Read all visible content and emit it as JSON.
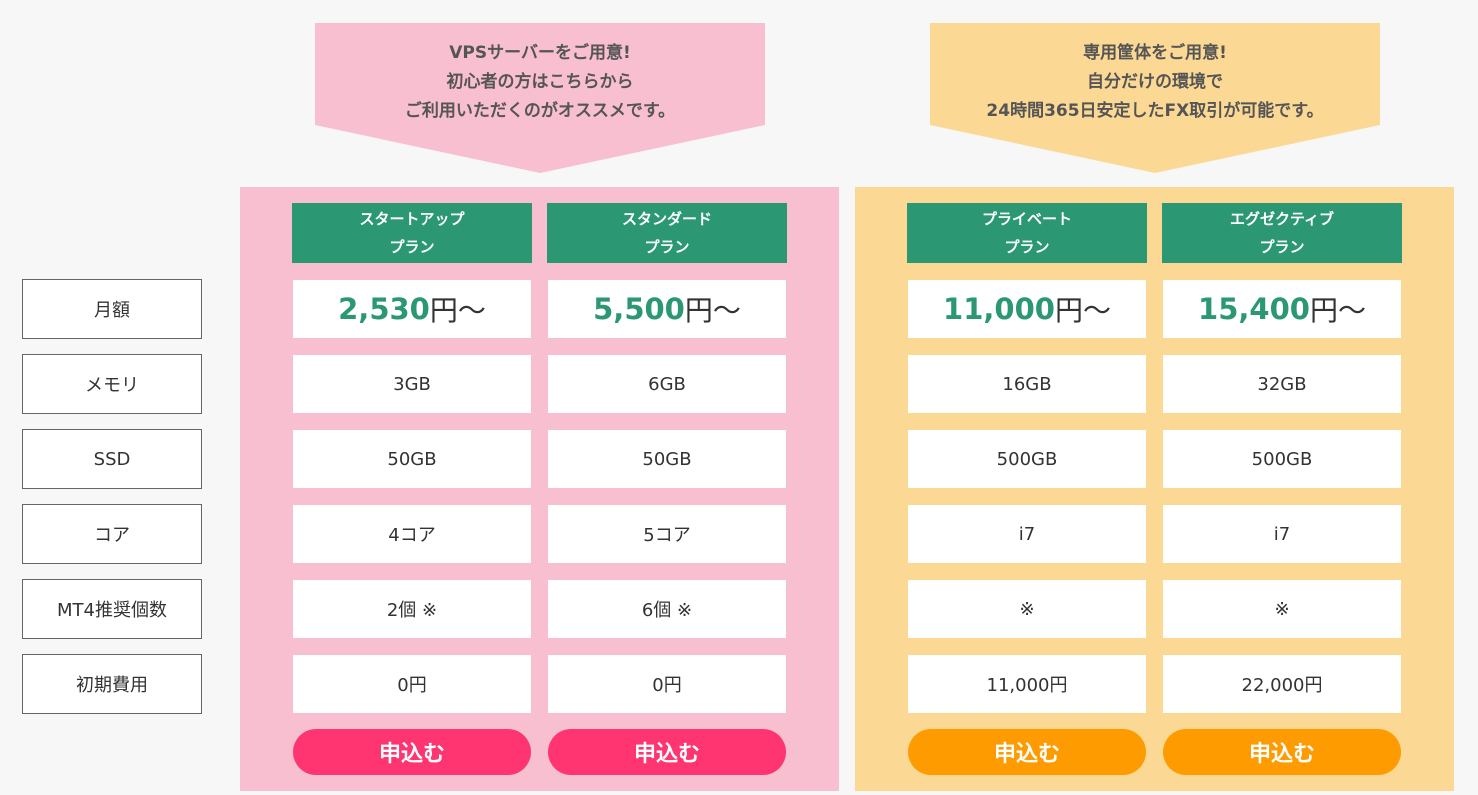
{
  "callouts": {
    "vps": {
      "line1": "VPSサーバーをご用意!",
      "line2": "初心者の方はこちらから",
      "line3": "ご利用いただくのがオススメです。"
    },
    "dedicated": {
      "line1": "専用筐体をご用意!",
      "line2": "自分だけの環境で",
      "line3": "24時間365日安定したFX取引が可能です。"
    }
  },
  "row_labels": {
    "monthly": "月額",
    "memory": "メモリ",
    "ssd": "SSD",
    "core": "コア",
    "mt4": "MT4推奨個数",
    "initial": "初期費用"
  },
  "plans": [
    {
      "name_line1": "スタートアップ",
      "name_line2": "プラン",
      "price_num": "2,530",
      "price_suffix": "円〜",
      "memory": "3GB",
      "ssd": "50GB",
      "core": "4コア",
      "mt4": "2個 ※",
      "initial": "0円",
      "apply_label": "申込む"
    },
    {
      "name_line1": "スタンダード",
      "name_line2": "プラン",
      "price_num": "5,500",
      "price_suffix": "円〜",
      "memory": "6GB",
      "ssd": "50GB",
      "core": "5コア",
      "mt4": "6個 ※",
      "initial": "0円",
      "apply_label": "申込む"
    },
    {
      "name_line1": "プライベート",
      "name_line2": "プラン",
      "price_num": "11,000",
      "price_suffix": "円〜",
      "memory": "16GB",
      "ssd": "500GB",
      "core": "i7",
      "mt4": "※",
      "initial": "11,000円",
      "apply_label": "申込む"
    },
    {
      "name_line1": "エグゼクティブ",
      "name_line2": "プラン",
      "price_num": "15,400",
      "price_suffix": "円〜",
      "memory": "32GB",
      "ssd": "500GB",
      "core": "i7",
      "mt4": "※",
      "initial": "22,000円",
      "apply_label": "申込む"
    }
  ],
  "colors": {
    "pink_group": "#f8bfd1",
    "yellow_group": "#fbd995",
    "plan_header": "#2b9873",
    "apply_pink": "#fe3570",
    "apply_orange": "#fe9b00"
  }
}
